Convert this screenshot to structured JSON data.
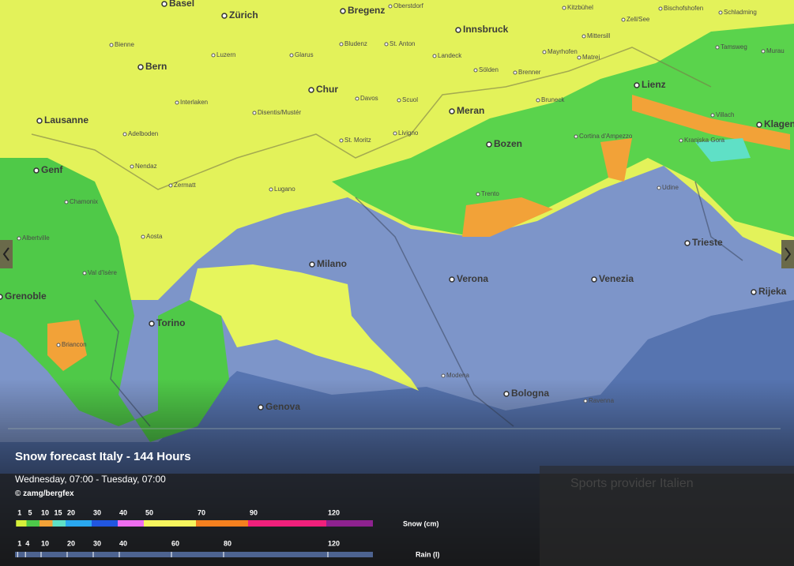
{
  "map": {
    "major_cities": [
      "Basel",
      "Zürich",
      "Bregenz",
      "Innsbruck",
      "Bern",
      "Chur",
      "Meran",
      "Lienz",
      "Klagen",
      "Lausanne",
      "Genf",
      "Bozen",
      "Milano",
      "Verona",
      "Venezia",
      "Trieste",
      "Rijeka",
      "Torino",
      "Grenoble",
      "Bologna",
      "Genova"
    ],
    "towns": [
      "Oberstdorf",
      "Kitzbühel",
      "Zell/See",
      "Bischofshofen",
      "Schladming",
      "Bienne",
      "Bludenz",
      "St. Anton",
      "Landeck",
      "Mittersill",
      "Matrei",
      "Tamsweg",
      "Murau",
      "Mayrhofen",
      "Luzern",
      "Glarus",
      "Sölden",
      "Brenner",
      "Interlaken",
      "Davos",
      "Scuol",
      "Disentis/Mustér",
      "Bruneck",
      "Villach",
      "Adelboden",
      "Livigno",
      "St. Moritz",
      "Cortina d'Ampezzo",
      "Kranjska Gora",
      "Nendaz",
      "Zermatt",
      "Lugano",
      "Trento",
      "Udine",
      "Chamonix",
      "Aosta",
      "Albertville",
      "Val d'Isère",
      "Briancon",
      "Modena",
      "Ravenna"
    ]
  },
  "background_text": "Sports provider Italien",
  "overlay": {
    "title": "Snow forecast Italy - 144 Hours",
    "period": "Wednesday, 07:00 - Tuesday, 07:00",
    "credit": "© zamg/bergfex"
  },
  "legend": {
    "snow": {
      "label": "Snow (cm)",
      "ticks": [
        1,
        5,
        10,
        15,
        20,
        30,
        40,
        50,
        70,
        90,
        120
      ],
      "colors": [
        "#d6ef3a",
        "#4ec94a",
        "#f2a238",
        "#5fe0c6",
        "#2aa8f0",
        "#2156e0",
        "#ee6ef0",
        "#f6f55e",
        "#f5801f",
        "#f0207c",
        "#8e2290"
      ]
    },
    "rain": {
      "label": "Rain (l)",
      "ticks": [
        1,
        4,
        10,
        20,
        30,
        40,
        60,
        80,
        120
      ],
      "color": "#4d6390"
    }
  }
}
